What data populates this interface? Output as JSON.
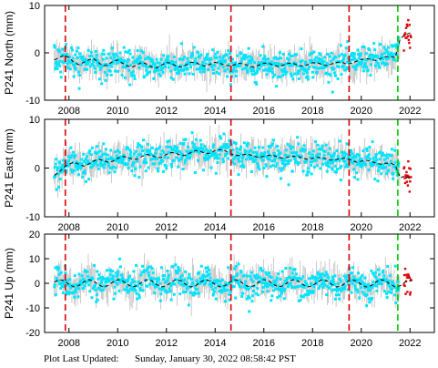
{
  "footer": {
    "label": "Plot Last Updated:",
    "value": "Sunday, January 30, 2022 08:58:42 PST"
  },
  "colors": {
    "data_points": "#00e5ff",
    "error_bars": "#b4b4b4",
    "recent_points": "#dd0000",
    "model_line": "#000000",
    "event_line_red": "#e00000",
    "event_line_green": "#00cc00"
  },
  "chart_data": [
    {
      "type": "scatter",
      "station": "P241",
      "component": "North",
      "ylabel": "P241 North (mm)",
      "xlim": [
        2007.0,
        2023.0
      ],
      "ylim": [
        -10,
        10
      ],
      "xticks": [
        2008,
        2010,
        2012,
        2014,
        2016,
        2018,
        2020,
        2022
      ],
      "yticks": [
        -10,
        0,
        10
      ],
      "event_lines_red": [
        2007.85,
        2014.65,
        2019.5
      ],
      "event_lines_green": [
        2021.5
      ],
      "series": [
        {
          "x": [
            2007.4,
            2007.6,
            2007.8,
            2008.0,
            2008.2,
            2008.4,
            2008.6,
            2008.8,
            2009.0,
            2009.2,
            2009.4,
            2009.6,
            2009.8,
            2010.0,
            2010.2,
            2010.4,
            2010.6,
            2010.8,
            2011.0,
            2011.2,
            2011.4,
            2011.6,
            2011.8,
            2012.0,
            2012.2,
            2012.4,
            2012.6,
            2012.8,
            2013.0,
            2013.2,
            2013.4,
            2013.6,
            2013.8,
            2014.0,
            2014.2,
            2014.4,
            2014.6,
            2014.8,
            2015.0,
            2015.2,
            2015.4,
            2015.6,
            2015.8,
            2016.0,
            2016.2,
            2016.4,
            2016.6,
            2016.8,
            2017.0,
            2017.2,
            2017.4,
            2017.6,
            2017.8,
            2018.0,
            2018.2,
            2018.4,
            2018.6,
            2018.8,
            2019.0,
            2019.2,
            2019.4,
            2019.6,
            2019.8,
            2020.0,
            2020.2,
            2020.4,
            2020.6,
            2020.8,
            2021.0,
            2021.2,
            2021.4,
            2021.6,
            2021.8,
            2022.0
          ],
          "y": [
            -1.5,
            -1.0,
            -0.5,
            -1.0,
            -2.0,
            -2.5,
            -2.0,
            -1.5,
            -1.2,
            -2.0,
            -2.8,
            -2.5,
            -1.8,
            -1.5,
            -2.2,
            -2.8,
            -3.0,
            -2.5,
            -2.0,
            -2.4,
            -3.0,
            -3.2,
            -2.6,
            -2.0,
            -2.2,
            -2.8,
            -3.0,
            -2.6,
            -2.0,
            -2.0,
            -2.6,
            -2.8,
            -2.4,
            -2.0,
            -2.2,
            -2.6,
            -2.8,
            -2.5,
            -2.2,
            -2.4,
            -2.8,
            -3.0,
            -2.6,
            -2.2,
            -2.2,
            -2.6,
            -2.9,
            -2.6,
            -2.2,
            -2.2,
            -2.6,
            -2.8,
            -2.5,
            -2.1,
            -2.1,
            -2.5,
            -2.7,
            -2.3,
            -2.0,
            -2.0,
            -2.4,
            -2.2,
            -1.8,
            -1.4,
            -1.2,
            -1.4,
            -1.6,
            -1.2,
            -0.8,
            -0.8,
            -1.0,
            3.0,
            3.8,
            4.2
          ]
        }
      ]
    },
    {
      "type": "scatter",
      "station": "P241",
      "component": "East",
      "ylabel": "P241 East (mm)",
      "xlim": [
        2007.0,
        2023.0
      ],
      "ylim": [
        -10,
        10
      ],
      "xticks": [
        2008,
        2010,
        2012,
        2014,
        2016,
        2018,
        2020,
        2022
      ],
      "yticks": [
        -10,
        0,
        10
      ],
      "event_lines_red": [
        2007.85,
        2014.65,
        2019.5
      ],
      "event_lines_green": [
        2021.5
      ],
      "series": [
        {
          "x": [
            2007.4,
            2007.6,
            2007.8,
            2008.0,
            2008.2,
            2008.4,
            2008.6,
            2008.8,
            2009.0,
            2009.2,
            2009.4,
            2009.6,
            2009.8,
            2010.0,
            2010.2,
            2010.4,
            2010.6,
            2010.8,
            2011.0,
            2011.2,
            2011.4,
            2011.6,
            2011.8,
            2012.0,
            2012.2,
            2012.4,
            2012.6,
            2012.8,
            2013.0,
            2013.2,
            2013.4,
            2013.6,
            2013.8,
            2014.0,
            2014.2,
            2014.4,
            2014.6,
            2014.8,
            2015.0,
            2015.2,
            2015.4,
            2015.6,
            2015.8,
            2016.0,
            2016.2,
            2016.4,
            2016.6,
            2016.8,
            2017.0,
            2017.2,
            2017.4,
            2017.6,
            2017.8,
            2018.0,
            2018.2,
            2018.4,
            2018.6,
            2018.8,
            2019.0,
            2019.2,
            2019.4,
            2019.6,
            2019.8,
            2020.0,
            2020.2,
            2020.4,
            2020.6,
            2020.8,
            2021.0,
            2021.2,
            2021.4,
            2021.6,
            2021.8,
            2022.0
          ],
          "y": [
            -1.5,
            -0.8,
            0.2,
            0.8,
            1.2,
            0.8,
            0.4,
            0.8,
            1.4,
            1.8,
            1.6,
            1.2,
            1.4,
            2.0,
            2.4,
            2.2,
            1.8,
            1.8,
            2.4,
            2.8,
            2.6,
            2.2,
            2.2,
            2.8,
            3.2,
            3.0,
            2.6,
            2.6,
            3.2,
            3.6,
            3.4,
            3.0,
            3.0,
            3.6,
            3.8,
            3.6,
            3.0,
            2.6,
            2.6,
            2.8,
            2.8,
            2.4,
            2.2,
            2.4,
            2.6,
            2.6,
            2.2,
            2.0,
            2.2,
            2.4,
            2.4,
            2.0,
            1.8,
            2.0,
            2.2,
            2.2,
            1.8,
            1.6,
            1.8,
            2.0,
            2.0,
            1.6,
            1.2,
            1.4,
            1.6,
            1.4,
            1.0,
            0.8,
            1.0,
            1.0,
            0.6,
            -2.0,
            -1.6,
            -2.2
          ]
        }
      ]
    },
    {
      "type": "scatter",
      "station": "P241",
      "component": "Up",
      "ylabel": "P241 Up (mm)",
      "xlim": [
        2007.0,
        2023.0
      ],
      "ylim": [
        -20,
        20
      ],
      "xticks": [
        2008,
        2010,
        2012,
        2014,
        2016,
        2018,
        2020,
        2022
      ],
      "yticks": [
        -20,
        -10,
        0,
        10,
        20
      ],
      "event_lines_red": [
        2007.85,
        2014.65,
        2019.5
      ],
      "event_lines_green": [
        2021.5
      ],
      "series": [
        {
          "x": [
            2007.4,
            2007.6,
            2007.8,
            2008.0,
            2008.2,
            2008.4,
            2008.6,
            2008.8,
            2009.0,
            2009.2,
            2009.4,
            2009.6,
            2009.8,
            2010.0,
            2010.2,
            2010.4,
            2010.6,
            2010.8,
            2011.0,
            2011.2,
            2011.4,
            2011.6,
            2011.8,
            2012.0,
            2012.2,
            2012.4,
            2012.6,
            2012.8,
            2013.0,
            2013.2,
            2013.4,
            2013.6,
            2013.8,
            2014.0,
            2014.2,
            2014.4,
            2014.6,
            2014.8,
            2015.0,
            2015.2,
            2015.4,
            2015.6,
            2015.8,
            2016.0,
            2016.2,
            2016.4,
            2016.6,
            2016.8,
            2017.0,
            2017.2,
            2017.4,
            2017.6,
            2017.8,
            2018.0,
            2018.2,
            2018.4,
            2018.6,
            2018.8,
            2019.0,
            2019.2,
            2019.4,
            2019.6,
            2019.8,
            2020.0,
            2020.2,
            2020.4,
            2020.6,
            2020.8,
            2021.0,
            2021.2,
            2021.4,
            2021.6,
            2021.8,
            2022.0
          ],
          "y": [
            0.5,
            1.5,
            1.0,
            -0.5,
            -1.5,
            -1.0,
            0.5,
            1.5,
            1.0,
            -0.5,
            -1.5,
            -1.0,
            0.5,
            1.5,
            1.0,
            -0.5,
            -1.5,
            -1.0,
            0.5,
            1.5,
            1.0,
            -0.5,
            -1.5,
            -1.0,
            0.5,
            1.5,
            1.0,
            -0.5,
            -1.5,
            -1.0,
            0.5,
            1.5,
            1.0,
            -0.5,
            -1.5,
            -1.0,
            0.5,
            1.5,
            1.0,
            -0.5,
            -1.5,
            -1.0,
            0.5,
            1.5,
            1.0,
            -0.5,
            -1.5,
            -1.0,
            0.5,
            1.5,
            1.0,
            -0.5,
            -1.5,
            -1.0,
            0.5,
            1.5,
            1.0,
            -0.5,
            -1.5,
            -1.0,
            0.5,
            1.5,
            1.0,
            -0.5,
            -1.5,
            -1.0,
            0.5,
            1.5,
            1.0,
            -0.5,
            -1.5,
            -1.0,
            0.5,
            1.0
          ]
        }
      ]
    }
  ]
}
